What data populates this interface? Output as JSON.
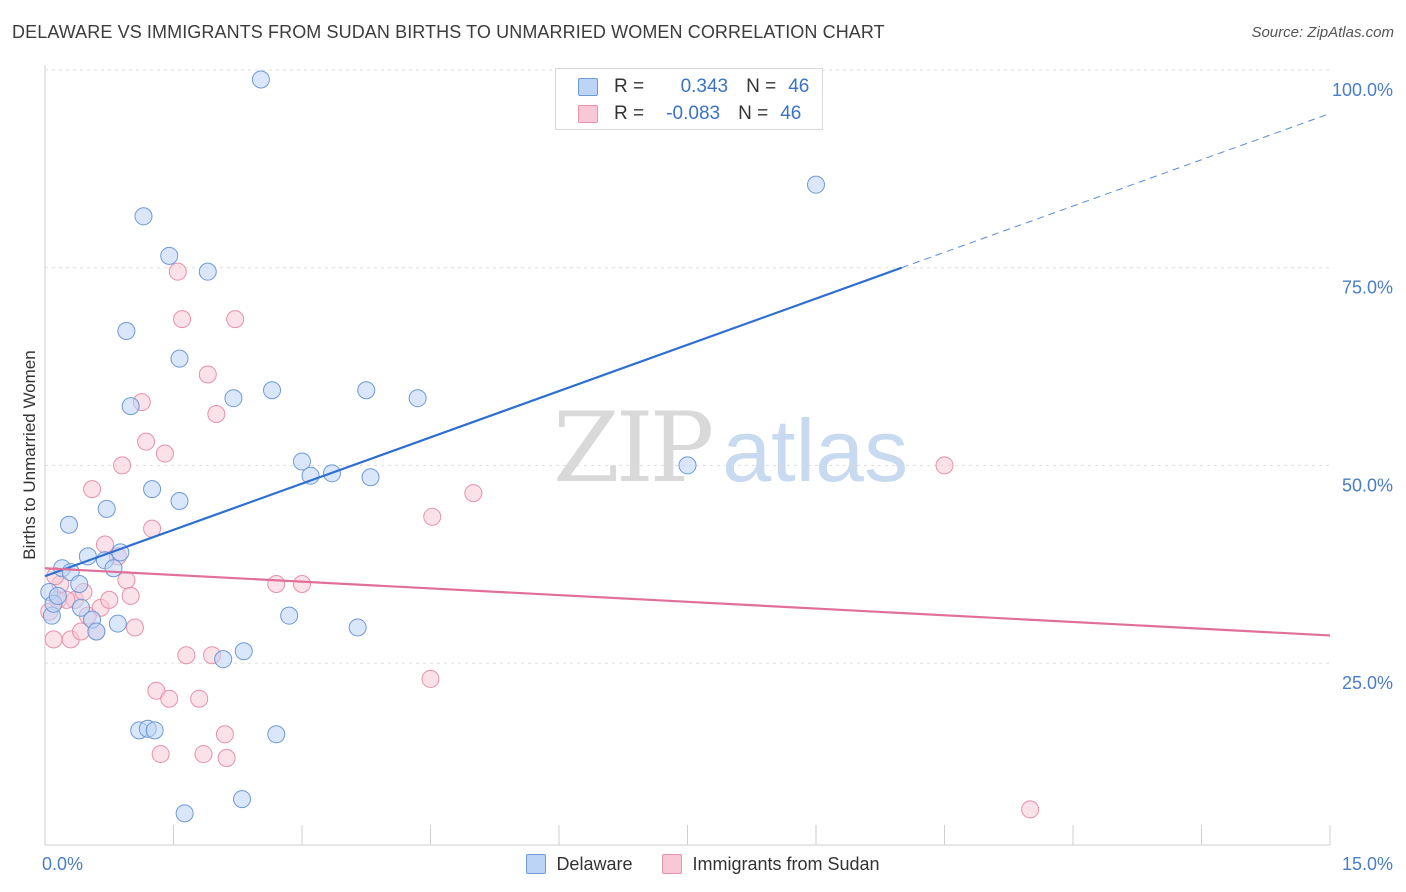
{
  "title": "DELAWARE VS IMMIGRANTS FROM SUDAN BIRTHS TO UNMARRIED WOMEN CORRELATION CHART",
  "source": "Source: ZipAtlas.com",
  "watermark": {
    "zip": "ZIP",
    "atlas": "atlas"
  },
  "stats": [
    {
      "r_label": "R =",
      "r_value": "0.343",
      "n_label": "N =",
      "n_value": "46"
    },
    {
      "r_label": "R =",
      "r_value": "-0.083",
      "n_label": "N =",
      "n_value": "46"
    }
  ],
  "colors": {
    "delaware_fill": "#bcd4f5",
    "delaware_stroke": "#6f9ad6",
    "delaware_line": "#2f6fcf",
    "sudan_fill": "#f8c8d6",
    "sudan_stroke": "#e791ab",
    "sudan_line": "#e0709a",
    "tick_label": "#4a7cc7",
    "grid": "#dddddd"
  },
  "chart_data": {
    "type": "scatter",
    "xlabel": "",
    "ylabel": "Births to Unmarried Women",
    "xlim": [
      0,
      15
    ],
    "ylim": [
      2,
      100
    ],
    "x_tick_labels": [
      {
        "value": 0,
        "label": "0.0%"
      },
      {
        "value": 15,
        "label": "15.0%"
      }
    ],
    "y_tick_labels": [
      {
        "value": 25,
        "label": "25.0%"
      },
      {
        "value": 50,
        "label": "50.0%"
      },
      {
        "value": 75,
        "label": "75.0%"
      },
      {
        "value": 100,
        "label": "100.0%"
      }
    ],
    "grid": true,
    "legend_position": "bottom-center",
    "series": [
      {
        "name": "Delaware",
        "points": [
          [
            0.05,
            34.0
          ],
          [
            0.08,
            31.0
          ],
          [
            0.1,
            32.5
          ],
          [
            0.15,
            33.5
          ],
          [
            0.2,
            37.0
          ],
          [
            0.28,
            42.5
          ],
          [
            0.3,
            36.5
          ],
          [
            0.4,
            35.0
          ],
          [
            0.42,
            32.0
          ],
          [
            0.55,
            30.5
          ],
          [
            0.6,
            29.0
          ],
          [
            0.5,
            38.5
          ],
          [
            0.7,
            38.0
          ],
          [
            0.72,
            44.5
          ],
          [
            0.8,
            37.0
          ],
          [
            0.85,
            30.0
          ],
          [
            0.88,
            39.0
          ],
          [
            0.95,
            67.0
          ],
          [
            1.0,
            57.5
          ],
          [
            1.1,
            16.5
          ],
          [
            1.15,
            81.5
          ],
          [
            1.2,
            16.7
          ],
          [
            1.25,
            47.0
          ],
          [
            1.28,
            16.5
          ],
          [
            1.45,
            76.5
          ],
          [
            1.57,
            63.5
          ],
          [
            1.57,
            45.5
          ],
          [
            1.63,
            6.0
          ],
          [
            1.9,
            74.5
          ],
          [
            2.08,
            25.5
          ],
          [
            2.2,
            58.5
          ],
          [
            2.3,
            7.8
          ],
          [
            2.32,
            26.5
          ],
          [
            2.52,
            98.8
          ],
          [
            2.65,
            59.5
          ],
          [
            2.7,
            16.0
          ],
          [
            2.85,
            31.0
          ],
          [
            3.0,
            50.5
          ],
          [
            3.1,
            48.7
          ],
          [
            3.35,
            49.0
          ],
          [
            3.65,
            29.5
          ],
          [
            3.75,
            59.5
          ],
          [
            3.8,
            48.5
          ],
          [
            4.35,
            58.5
          ],
          [
            7.5,
            50.0
          ],
          [
            9.0,
            85.5
          ]
        ]
      },
      {
        "name": "Immigrants from Sudan",
        "points": [
          [
            0.05,
            31.5
          ],
          [
            0.1,
            28.0
          ],
          [
            0.15,
            33.0
          ],
          [
            0.18,
            35.0
          ],
          [
            0.3,
            28.0
          ],
          [
            0.35,
            33.0
          ],
          [
            0.42,
            29.0
          ],
          [
            0.45,
            34.0
          ],
          [
            0.5,
            31.0
          ],
          [
            0.55,
            47.0
          ],
          [
            0.6,
            29.0
          ],
          [
            0.65,
            32.0
          ],
          [
            0.7,
            40.0
          ],
          [
            0.75,
            33.0
          ],
          [
            0.85,
            38.5
          ],
          [
            0.9,
            50.0
          ],
          [
            0.95,
            35.5
          ],
          [
            1.0,
            33.5
          ],
          [
            1.05,
            29.5
          ],
          [
            1.13,
            58.0
          ],
          [
            1.18,
            53.0
          ],
          [
            1.25,
            42.0
          ],
          [
            1.3,
            21.5
          ],
          [
            1.35,
            13.5
          ],
          [
            1.4,
            51.5
          ],
          [
            1.45,
            20.5
          ],
          [
            1.55,
            74.5
          ],
          [
            1.6,
            68.5
          ],
          [
            1.65,
            26.0
          ],
          [
            1.8,
            20.5
          ],
          [
            1.85,
            13.5
          ],
          [
            1.9,
            61.5
          ],
          [
            1.95,
            26.0
          ],
          [
            2.0,
            56.5
          ],
          [
            2.1,
            16.0
          ],
          [
            2.12,
            13.0
          ],
          [
            2.22,
            68.5
          ],
          [
            2.7,
            35.0
          ],
          [
            3.0,
            35.0
          ],
          [
            4.5,
            23.0
          ],
          [
            4.52,
            43.5
          ],
          [
            5.0,
            46.5
          ],
          [
            10.5,
            50.0
          ],
          [
            11.5,
            6.5
          ],
          [
            0.25,
            33.0
          ],
          [
            0.12,
            36.0
          ]
        ]
      }
    ],
    "trendlines": [
      {
        "series": "Delaware",
        "from": [
          0.0,
          36.0
        ],
        "to": [
          10.0,
          75.0
        ],
        "dashed_to": [
          15.0,
          94.5
        ]
      },
      {
        "series": "Immigrants from Sudan",
        "from": [
          0.0,
          37.0
        ],
        "to": [
          15.0,
          28.5
        ]
      }
    ]
  },
  "legend": [
    {
      "name": "Delaware"
    },
    {
      "name": "Immigrants from Sudan"
    }
  ]
}
